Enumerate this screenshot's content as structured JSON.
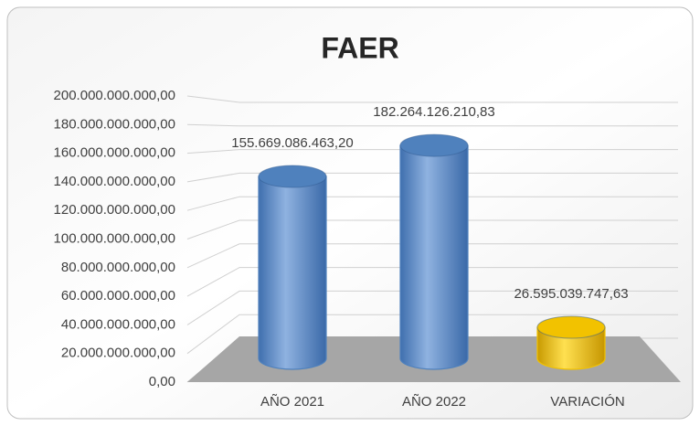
{
  "chart_data": {
    "type": "bar",
    "title": "FAER",
    "categories": [
      "AÑO 2021",
      "AÑO 2022",
      "VARIACIÓN"
    ],
    "values": [
      155669086463.2,
      182264126210.83,
      26595039747.63
    ],
    "value_labels": [
      "155.669.086.463,20",
      "182.264.126.210,83",
      "26.595.039.747,63"
    ],
    "colors": [
      "#4f81bd",
      "#4f81bd",
      "#f2c200"
    ],
    "ylim": [
      0,
      200000000000
    ],
    "yticks": [
      {
        "value": 0,
        "label": "0,00"
      },
      {
        "value": 20000000000,
        "label": "20.000.000.000,00"
      },
      {
        "value": 40000000000,
        "label": "40.000.000.000,00"
      },
      {
        "value": 60000000000,
        "label": "60.000.000.000,00"
      },
      {
        "value": 80000000000,
        "label": "80.000.000.000,00"
      },
      {
        "value": 100000000000,
        "label": "100.000.000.000,00"
      },
      {
        "value": 120000000000,
        "label": "120.000.000.000,00"
      },
      {
        "value": 140000000000,
        "label": "140.000.000.000,00"
      },
      {
        "value": 160000000000,
        "label": "160.000.000.000,00"
      },
      {
        "value": 180000000000,
        "label": "180.000.000.000,00"
      },
      {
        "value": 200000000000,
        "label": "200.000.000.000,00"
      }
    ],
    "grid": true
  }
}
